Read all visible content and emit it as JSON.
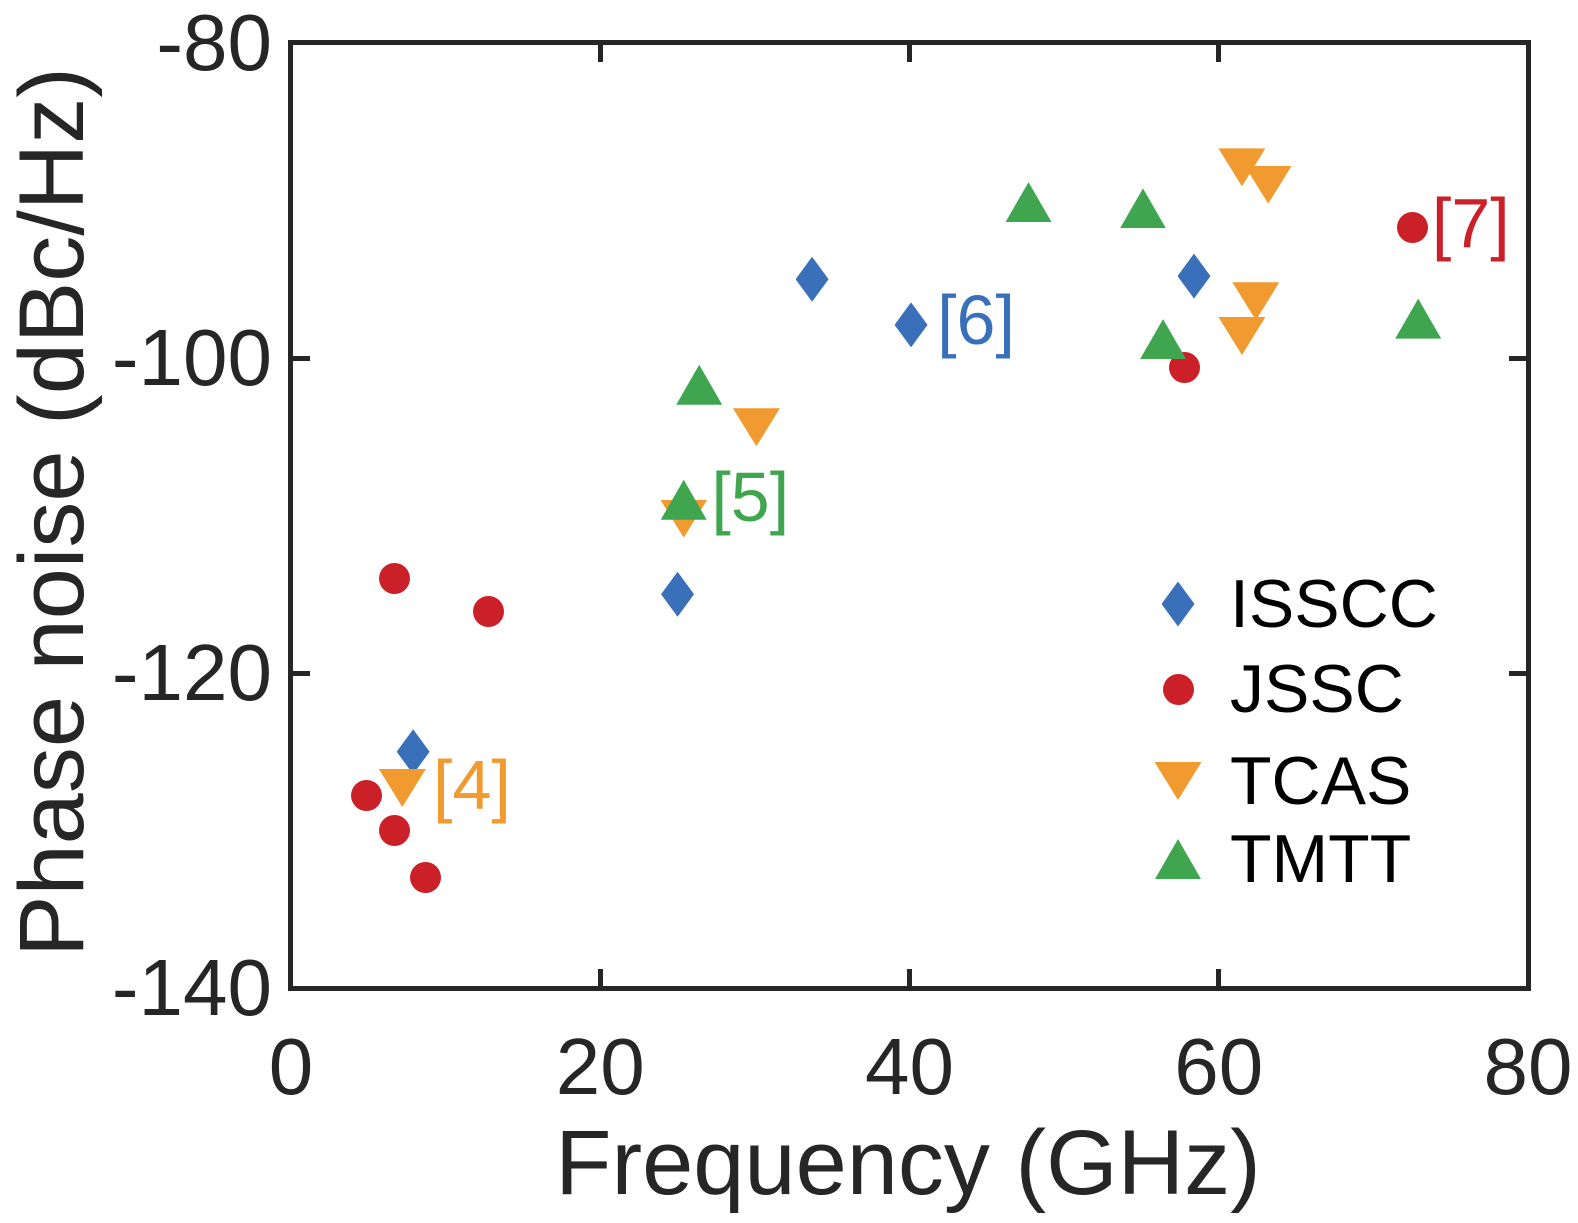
{
  "figure": {
    "xlabel": "Frequency (GHz)",
    "ylabel": "Phase noise (dBc/Hz)"
  },
  "chart_data": {
    "type": "scatter",
    "title": "",
    "xlabel": "Frequency (GHz)",
    "ylabel": "Phase noise (dBc/Hz)",
    "xlim": [
      0,
      80
    ],
    "ylim": [
      -140,
      -80
    ],
    "x_ticks": [
      0,
      20,
      40,
      60,
      80
    ],
    "y_ticks": [
      -80,
      -100,
      -120,
      -140
    ],
    "grid": false,
    "legend_position": "lower right",
    "axis_color": "#262626",
    "series": [
      {
        "name": "ISSCC",
        "marker": "diamond",
        "color": "#3A70B9",
        "points": [
          [
            7.9,
            -125.0
          ],
          [
            25.0,
            -115.0
          ],
          [
            33.7,
            -95.0
          ],
          [
            40.1,
            -97.9
          ],
          [
            58.4,
            -94.8
          ]
        ]
      },
      {
        "name": "JSSC",
        "marker": "circle",
        "color": "#CB2027",
        "points": [
          [
            4.9,
            -127.8
          ],
          [
            6.7,
            -114.0
          ],
          [
            6.7,
            -130.0
          ],
          [
            8.7,
            -133.0
          ],
          [
            12.8,
            -116.1
          ],
          [
            57.8,
            -100.6
          ],
          [
            72.5,
            -91.7
          ]
        ]
      },
      {
        "name": "TCAS",
        "marker": "triangle-down",
        "color": "#F09A30",
        "points": [
          [
            7.2,
            -127.3
          ],
          [
            25.4,
            -110.2
          ],
          [
            30.1,
            -104.4
          ],
          [
            61.5,
            -87.9
          ],
          [
            63.2,
            -89.0
          ],
          [
            62.4,
            -96.4
          ],
          [
            61.5,
            -98.6
          ]
        ]
      },
      {
        "name": "TMTT",
        "marker": "triangle-up",
        "color": "#3FA64F",
        "points": [
          [
            25.4,
            -109.0
          ],
          [
            26.4,
            -101.7
          ],
          [
            47.7,
            -90.1
          ],
          [
            55.1,
            -90.5
          ],
          [
            56.4,
            -98.8
          ],
          [
            72.9,
            -97.5
          ]
        ]
      }
    ],
    "annotations": [
      {
        "text": "[4]",
        "color": "#F09A30",
        "x": 11.7,
        "y": -127.1
      },
      {
        "text": "[5]",
        "color": "#3FA64F",
        "x": 29.7,
        "y": -108.8
      },
      {
        "text": "[6]",
        "color": "#3A70B9",
        "x": 44.3,
        "y": -97.6
      },
      {
        "text": "[7]",
        "color": "#CB2027",
        "x": 76.3,
        "y": -91.4
      }
    ]
  }
}
